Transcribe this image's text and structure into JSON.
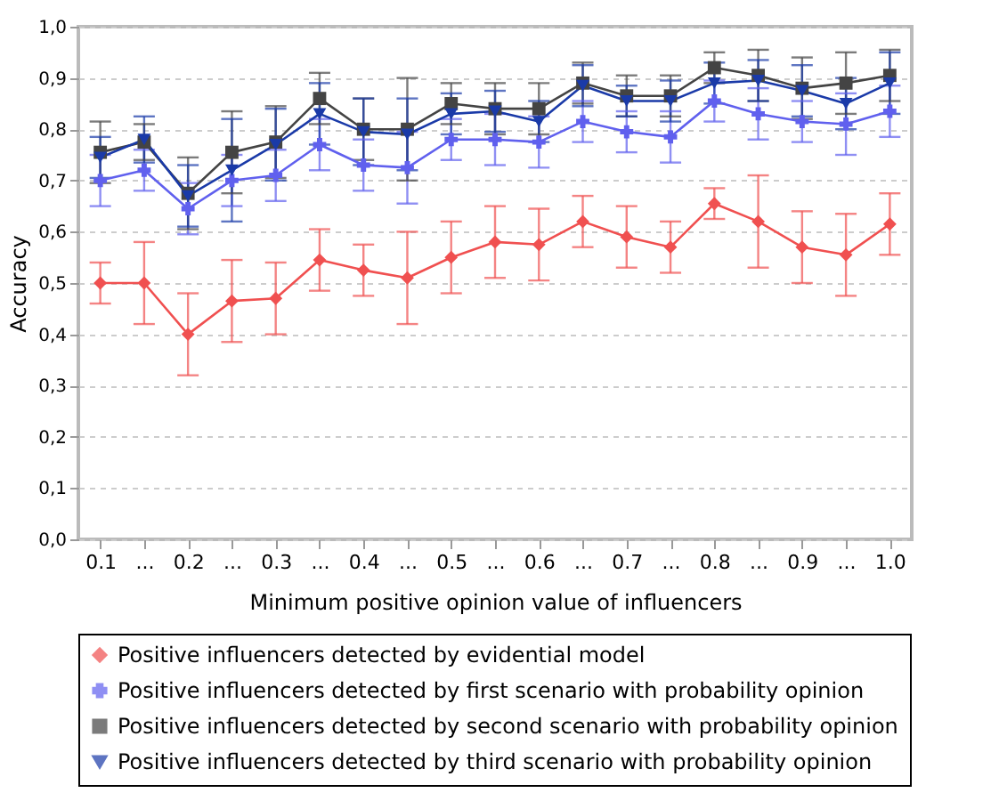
{
  "chart_data": {
    "type": "line",
    "xlabel": "Minimum positive opinion value of influencers",
    "ylabel": "Accuracy",
    "categories": [
      "0.1",
      "...",
      "0.2",
      "...",
      "0.3",
      "...",
      "0.4",
      "...",
      "0.5",
      "...",
      "0.6",
      "...",
      "0.7",
      "...",
      "0.8",
      "...",
      "0.9",
      "...",
      "1.0"
    ],
    "ylim": [
      0,
      1
    ],
    "yticks": [
      {
        "value": 0,
        "label": "0,0"
      },
      {
        "value": 0.1,
        "label": "0,1"
      },
      {
        "value": 0.2,
        "label": "0,2"
      },
      {
        "value": 0.3,
        "label": "0,3"
      },
      {
        "value": 0.4,
        "label": "0,4"
      },
      {
        "value": 0.5,
        "label": "0,5"
      },
      {
        "value": 0.6,
        "label": "0,6"
      },
      {
        "value": 0.7,
        "label": "0,7"
      },
      {
        "value": 0.8,
        "label": "0,8"
      },
      {
        "value": 0.9,
        "label": "0,9"
      },
      {
        "value": 1,
        "label": "1,0"
      }
    ],
    "grid": "y",
    "legend": "bottom",
    "series": [
      {
        "name": "Positive influencers detected by evidential model",
        "color": "#f05050",
        "marker": "diamond",
        "values": [
          0.5,
          0.5,
          0.4,
          0.465,
          0.47,
          0.545,
          0.525,
          0.51,
          0.55,
          0.58,
          0.575,
          0.62,
          0.59,
          0.57,
          0.655,
          0.62,
          0.57,
          0.555,
          0.615
        ],
        "errors": [
          0.04,
          0.08,
          0.08,
          0.08,
          0.07,
          0.06,
          0.05,
          0.09,
          0.07,
          0.07,
          0.07,
          0.05,
          0.06,
          0.05,
          0.03,
          0.09,
          0.07,
          0.08,
          0.06
        ]
      },
      {
        "name": "Positive influencers detected by first scenario with probability opinion",
        "color": "#6060ee",
        "marker": "cross",
        "values": [
          0.7,
          0.72,
          0.645,
          0.7,
          0.71,
          0.77,
          0.73,
          0.725,
          0.78,
          0.78,
          0.775,
          0.815,
          0.795,
          0.785,
          0.855,
          0.83,
          0.815,
          0.81,
          0.835
        ],
        "errors": [
          0.05,
          0.04,
          0.05,
          0.05,
          0.05,
          0.05,
          0.05,
          0.07,
          0.04,
          0.05,
          0.05,
          0.04,
          0.04,
          0.05,
          0.04,
          0.05,
          0.04,
          0.06,
          0.05
        ]
      },
      {
        "name": "Positive influencers detected by second scenario with probability opinion",
        "color": "#444444",
        "marker": "square",
        "values": [
          0.755,
          0.775,
          0.675,
          0.755,
          0.775,
          0.86,
          0.8,
          0.8,
          0.85,
          0.84,
          0.84,
          0.89,
          0.865,
          0.865,
          0.92,
          0.905,
          0.88,
          0.89,
          0.905
        ],
        "errors": [
          0.06,
          0.035,
          0.07,
          0.08,
          0.07,
          0.05,
          0.06,
          0.1,
          0.04,
          0.05,
          0.05,
          0.04,
          0.04,
          0.04,
          0.03,
          0.05,
          0.06,
          0.06,
          0.05
        ]
      },
      {
        "name": "Positive influencers detected by third scenario with probability opinion",
        "color": "#1a3aa8",
        "marker": "triangle",
        "values": [
          0.745,
          0.78,
          0.67,
          0.72,
          0.77,
          0.83,
          0.795,
          0.79,
          0.83,
          0.835,
          0.815,
          0.885,
          0.855,
          0.855,
          0.89,
          0.895,
          0.875,
          0.85,
          0.89
        ],
        "errors": [
          0.04,
          0.045,
          0.06,
          0.1,
          0.07,
          0.06,
          0.065,
          0.07,
          0.04,
          0.04,
          0.04,
          0.04,
          0.03,
          0.04,
          0.04,
          0.04,
          0.05,
          0.05,
          0.06
        ]
      }
    ]
  }
}
